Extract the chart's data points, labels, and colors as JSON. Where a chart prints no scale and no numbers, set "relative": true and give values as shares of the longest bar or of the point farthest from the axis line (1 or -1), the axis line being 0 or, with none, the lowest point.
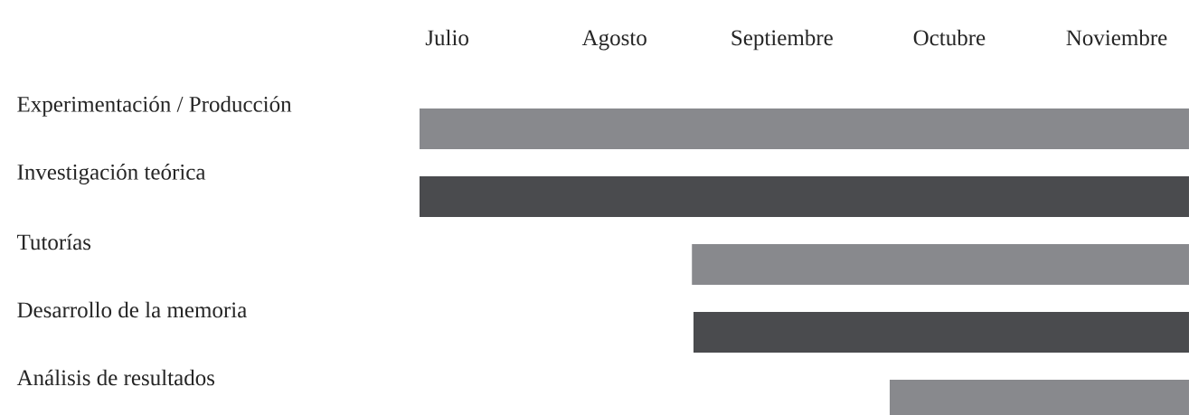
{
  "chart_data": {
    "type": "bar",
    "orientation": "horizontal",
    "relative": true,
    "categories": [
      "Experimentación / Producción",
      "Investigación teórica",
      "Tutorías",
      "Desarrollo de la memoria",
      "Análisis de resultados"
    ],
    "values": [
      1,
      1,
      0.646,
      0.644,
      0.389
    ],
    "colors": [
      "#88898d",
      "#4a4b4e",
      "#88898d",
      "#4a4b4e",
      "#88898d"
    ],
    "annotations": [
      "Julio",
      "Agosto",
      "Septiembre",
      "Octubre",
      "Noviembre"
    ]
  }
}
